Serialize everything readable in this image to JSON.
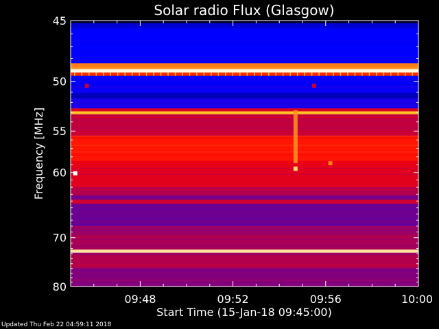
{
  "chart_data": {
    "type": "heatmap",
    "title": "Solar radio Flux (Glasgow)",
    "ylabel": "Frequency [MHz]",
    "xlabel": "Start Time (15-Jan-18 09:45:00)",
    "x_tick_labels": [
      "09:48",
      "09:52",
      "09:56",
      "10:00"
    ],
    "x_tick_values_min": [
      3,
      7,
      11,
      15
    ],
    "x_range_min": [
      0,
      15
    ],
    "y_tick_labels": [
      "45",
      "50",
      "55",
      "60",
      "70",
      "80"
    ],
    "y_tick_values": [
      45,
      50,
      55,
      60,
      70,
      80
    ],
    "y_range_mhz": [
      45,
      80
    ],
    "y_scale": "reciprocal",
    "grid": false,
    "colormap": "black-blue-red-yellow-white",
    "bands": [
      {
        "f0": 45.0,
        "f1": 45.2,
        "level": 0.05
      },
      {
        "f0": 45.2,
        "f1": 45.6,
        "level": 0.28
      },
      {
        "f0": 45.6,
        "f1": 48.4,
        "level": 0.33
      },
      {
        "f0": 48.4,
        "f1": 48.9,
        "level": 0.78
      },
      {
        "f0": 48.9,
        "f1": 49.2,
        "level": 0.98
      },
      {
        "f0": 49.2,
        "f1": 49.5,
        "level": 0.7
      },
      {
        "f0": 49.5,
        "f1": 51.1,
        "level": 0.34
      },
      {
        "f0": 51.1,
        "f1": 51.6,
        "level": 0.24
      },
      {
        "f0": 51.6,
        "f1": 52.6,
        "level": 0.36
      },
      {
        "f0": 52.6,
        "f1": 52.9,
        "level": 0.62
      },
      {
        "f0": 52.9,
        "f1": 53.2,
        "level": 0.85
      },
      {
        "f0": 53.2,
        "f1": 55.5,
        "level": 0.58
      },
      {
        "f0": 55.5,
        "f1": 58.5,
        "level": 0.68
      },
      {
        "f0": 58.5,
        "f1": 62.0,
        "level": 0.62
      },
      {
        "f0": 62.0,
        "f1": 63.2,
        "level": 0.56
      },
      {
        "f0": 63.2,
        "f1": 63.8,
        "level": 0.48
      },
      {
        "f0": 63.8,
        "f1": 64.4,
        "level": 0.6
      },
      {
        "f0": 64.4,
        "f1": 68.0,
        "level": 0.47
      },
      {
        "f0": 68.0,
        "f1": 69.5,
        "level": 0.53
      },
      {
        "f0": 69.5,
        "f1": 72.2,
        "level": 0.55
      },
      {
        "f0": 72.2,
        "f1": 72.8,
        "level": 0.93
      },
      {
        "f0": 72.8,
        "f1": 76.0,
        "level": 0.56
      },
      {
        "f0": 76.0,
        "f1": 80.0,
        "level": 0.5
      }
    ],
    "events": [
      {
        "kind": "vertical_burst",
        "time_min": 9.7,
        "f0": 52.8,
        "f1": 58.8,
        "level": 0.8
      },
      {
        "kind": "spot",
        "time_min": 9.7,
        "freq": 59.5,
        "level": 0.9
      },
      {
        "kind": "spot",
        "time_min": 0.2,
        "freq": 60.1,
        "level": 1.0
      },
      {
        "kind": "spot",
        "time_min": 0.7,
        "freq": 50.4,
        "level": 0.58
      },
      {
        "kind": "spot",
        "time_min": 10.5,
        "freq": 50.4,
        "level": 0.58
      },
      {
        "kind": "spot",
        "time_min": 11.2,
        "freq": 58.8,
        "level": 0.78
      }
    ]
  },
  "footer": {
    "updated_text": "Updated Thu Feb 22 04:59:11 2018"
  }
}
